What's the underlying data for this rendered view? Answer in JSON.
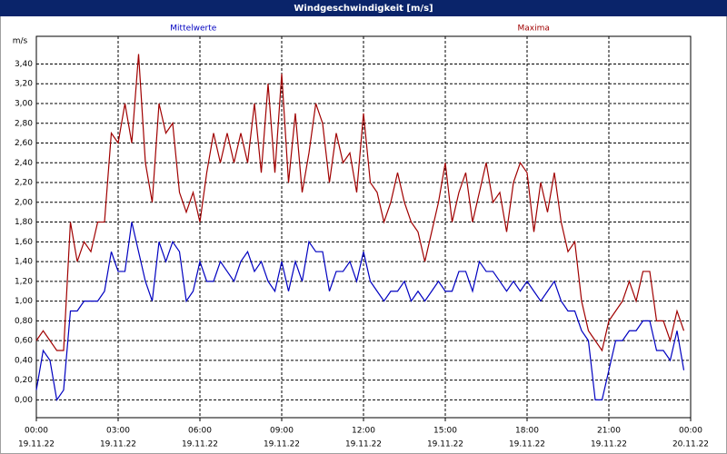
{
  "chart_data": {
    "type": "line",
    "title": "Windgeschwindigkeit [m/s]",
    "y_unit": "m/s",
    "x": [
      0,
      0.25,
      0.5,
      0.75,
      1,
      1.25,
      1.5,
      1.75,
      2,
      2.25,
      2.5,
      2.75,
      3,
      3.25,
      3.5,
      3.75,
      4,
      4.25,
      4.5,
      4.75,
      5,
      5.25,
      5.5,
      5.75,
      6,
      6.25,
      6.5,
      6.75,
      7,
      7.25,
      7.5,
      7.75,
      8,
      8.25,
      8.5,
      8.75,
      9,
      9.25,
      9.5,
      9.75,
      10,
      10.25,
      10.5,
      10.75,
      11,
      11.25,
      11.5,
      11.75,
      12,
      12.25,
      12.5,
      12.75,
      13,
      13.25,
      13.5,
      13.75,
      14,
      14.25,
      14.5,
      14.75,
      15,
      15.25,
      15.5,
      15.75,
      16,
      16.25,
      16.5,
      16.75,
      17,
      17.25,
      17.5,
      17.75,
      18,
      18.25,
      18.5,
      18.75,
      19,
      19.25,
      19.5,
      19.75,
      20,
      20.25,
      20.5,
      20.75,
      21,
      21.25,
      21.5,
      21.75,
      22,
      22.25,
      22.5,
      22.75,
      23,
      23.25,
      23.5,
      23.75
    ],
    "series": [
      {
        "name": "Mittelwerte",
        "color": "#0000c0",
        "values": [
          0.1,
          0.5,
          0.4,
          0.0,
          0.1,
          0.9,
          0.9,
          1.0,
          1.0,
          1.0,
          1.1,
          1.5,
          1.3,
          1.3,
          1.8,
          1.5,
          1.2,
          1.0,
          1.6,
          1.4,
          1.6,
          1.5,
          1.0,
          1.1,
          1.4,
          1.2,
          1.2,
          1.4,
          1.3,
          1.2,
          1.4,
          1.5,
          1.3,
          1.4,
          1.2,
          1.1,
          1.4,
          1.1,
          1.4,
          1.2,
          1.6,
          1.5,
          1.5,
          1.1,
          1.3,
          1.3,
          1.4,
          1.2,
          1.5,
          1.2,
          1.1,
          1.0,
          1.1,
          1.1,
          1.2,
          1.0,
          1.1,
          1.0,
          1.1,
          1.2,
          1.1,
          1.1,
          1.3,
          1.3,
          1.1,
          1.4,
          1.3,
          1.3,
          1.2,
          1.1,
          1.2,
          1.1,
          1.2,
          1.1,
          1.0,
          1.1,
          1.2,
          1.0,
          0.9,
          0.9,
          0.7,
          0.6,
          0.0,
          0.0,
          0.3,
          0.6,
          0.6,
          0.7,
          0.7,
          0.8,
          0.8,
          0.5,
          0.5,
          0.4,
          0.7,
          0.3
        ]
      },
      {
        "name": "Maxima",
        "color": "#a00000",
        "values": [
          0.6,
          0.7,
          0.6,
          0.5,
          0.5,
          1.8,
          1.4,
          1.6,
          1.5,
          1.8,
          1.8,
          2.7,
          2.6,
          3.0,
          2.6,
          3.5,
          2.4,
          2.0,
          3.0,
          2.7,
          2.8,
          2.1,
          1.9,
          2.1,
          1.8,
          2.3,
          2.7,
          2.4,
          2.7,
          2.4,
          2.7,
          2.4,
          3.0,
          2.3,
          3.2,
          2.3,
          3.3,
          2.2,
          2.9,
          2.1,
          2.5,
          3.0,
          2.8,
          2.2,
          2.7,
          2.4,
          2.5,
          2.1,
          2.9,
          2.2,
          2.1,
          1.8,
          2.0,
          2.3,
          2.0,
          1.8,
          1.7,
          1.4,
          1.7,
          2.0,
          2.4,
          1.8,
          2.1,
          2.3,
          1.8,
          2.1,
          2.4,
          2.0,
          2.1,
          1.7,
          2.2,
          2.4,
          2.3,
          1.7,
          2.2,
          1.9,
          2.3,
          1.8,
          1.5,
          1.6,
          1.0,
          0.7,
          0.6,
          0.5,
          0.8,
          0.9,
          1.0,
          1.2,
          1.0,
          1.3,
          1.3,
          0.8,
          0.8,
          0.6,
          0.9,
          0.7
        ]
      }
    ],
    "xlim": [
      0,
      24
    ],
    "xticks": [
      {
        "value": 0,
        "label": "00:00"
      },
      {
        "value": 3,
        "label": "03:00"
      },
      {
        "value": 6,
        "label": "06:00"
      },
      {
        "value": 9,
        "label": "09:00"
      },
      {
        "value": 12,
        "label": "12:00"
      },
      {
        "value": 15,
        "label": "15:00"
      },
      {
        "value": 18,
        "label": "18:00"
      },
      {
        "value": 21,
        "label": "21:00"
      },
      {
        "value": 24,
        "label": "00:00"
      }
    ],
    "xtick_dates": [
      "19.11.22",
      "19.11.22",
      "19.11.22",
      "19.11.22",
      "19.11.22",
      "19.11.22",
      "19.11.22",
      "19.11.22",
      "20.11.22"
    ],
    "ylim": [
      -0.18,
      3.68
    ],
    "yticks": [
      {
        "value": 0,
        "label": "0,00"
      },
      {
        "value": 0.2,
        "label": "0,20"
      },
      {
        "value": 0.4,
        "label": "0,40"
      },
      {
        "value": 0.6,
        "label": "0,60"
      },
      {
        "value": 0.8,
        "label": "0,80"
      },
      {
        "value": 1.0,
        "label": "1,00"
      },
      {
        "value": 1.2,
        "label": "1,20"
      },
      {
        "value": 1.4,
        "label": "1,40"
      },
      {
        "value": 1.6,
        "label": "1,60"
      },
      {
        "value": 1.8,
        "label": "1,80"
      },
      {
        "value": 2.0,
        "label": "2,00"
      },
      {
        "value": 2.2,
        "label": "2,20"
      },
      {
        "value": 2.4,
        "label": "2,40"
      },
      {
        "value": 2.6,
        "label": "2,60"
      },
      {
        "value": 2.8,
        "label": "2,80"
      },
      {
        "value": 3.0,
        "label": "3,00"
      },
      {
        "value": 3.2,
        "label": "3,20"
      },
      {
        "value": 3.4,
        "label": "3,40"
      }
    ],
    "grid": true
  }
}
